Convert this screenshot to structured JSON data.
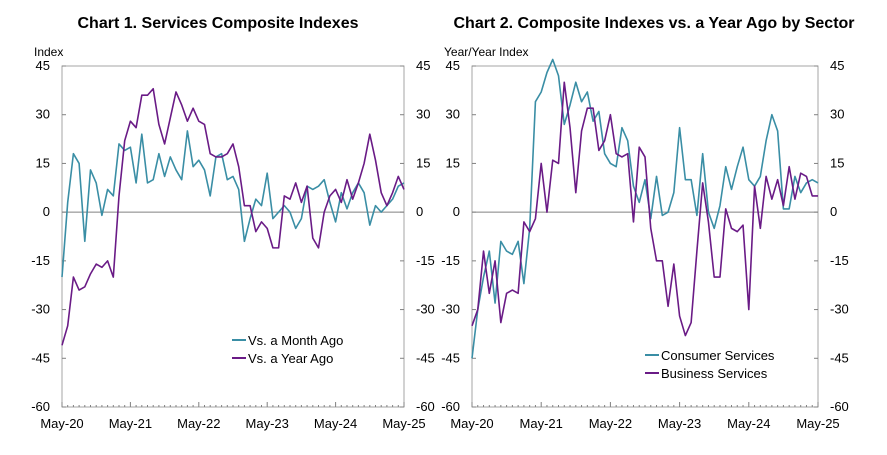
{
  "colors": {
    "teal": "#3a8ea5",
    "purple": "#6a1b86",
    "axis": "#808080",
    "frame": "#a6a6a6"
  },
  "chart_data": [
    {
      "type": "line",
      "title": "Chart 1. Services Composite Indexes",
      "ylabel": "Index",
      "ylim": [
        -60,
        45
      ],
      "yticks": [
        45,
        30,
        15,
        0,
        -15,
        -30,
        -45,
        -60
      ],
      "xlim": [
        0,
        60
      ],
      "xticks": [
        {
          "i": 0,
          "label": "May-20"
        },
        {
          "i": 12,
          "label": "May-21"
        },
        {
          "i": 24,
          "label": "May-22"
        },
        {
          "i": 36,
          "label": "May-23"
        },
        {
          "i": 48,
          "label": "May-24"
        },
        {
          "i": 60,
          "label": "May-25"
        }
      ],
      "grid": false,
      "legend": "bottom-right",
      "series": [
        {
          "name": "Vs. a Month Ago",
          "color": "#3a8ea5",
          "values": [
            -20,
            3,
            18,
            15,
            -9,
            13,
            9,
            -1,
            7,
            5,
            21,
            19,
            20,
            9,
            24,
            9,
            10,
            18,
            11,
            17,
            13,
            10,
            25,
            14,
            16,
            13,
            5,
            17,
            18,
            10,
            11,
            7,
            -9,
            -2,
            4,
            2,
            12,
            -2,
            0,
            2,
            0,
            -5,
            -2,
            8,
            7,
            8,
            10,
            3,
            -3,
            6,
            1,
            6,
            9,
            6,
            -4,
            2,
            0,
            2,
            4,
            8,
            9
          ]
        },
        {
          "name": "Vs. a Year Ago",
          "color": "#6a1b86",
          "values": [
            -41,
            -35,
            -20,
            -24,
            -23,
            -19,
            -16,
            -17,
            -15,
            -20,
            5,
            22,
            28,
            26,
            36,
            36,
            38,
            27,
            21,
            29,
            37,
            33,
            28,
            32,
            28,
            27,
            18,
            17,
            17,
            18,
            21,
            14,
            2,
            2,
            -6,
            -3,
            -5,
            -11,
            -11,
            5,
            4,
            9,
            3,
            8,
            -8,
            -11,
            0,
            5,
            7,
            3,
            10,
            4,
            9,
            15,
            24,
            16,
            6,
            2,
            6,
            11,
            7
          ]
        }
      ]
    },
    {
      "type": "line",
      "title": "Chart 2. Composite Indexes vs. a Year Ago by Sector",
      "ylabel": "Year/Year Index",
      "ylim": [
        -60,
        45
      ],
      "yticks": [
        45,
        30,
        15,
        0,
        -15,
        -30,
        -45,
        -60
      ],
      "xlim": [
        0,
        60
      ],
      "xticks": [
        {
          "i": 0,
          "label": "May-20"
        },
        {
          "i": 12,
          "label": "May-21"
        },
        {
          "i": 24,
          "label": "May-22"
        },
        {
          "i": 36,
          "label": "May-23"
        },
        {
          "i": 48,
          "label": "May-24"
        },
        {
          "i": 60,
          "label": "May-25"
        }
      ],
      "grid": false,
      "legend": "bottom-right",
      "series": [
        {
          "name": "Consumer Services",
          "color": "#3a8ea5",
          "values": [
            -45,
            -30,
            -20,
            -12,
            -28,
            -9,
            -12,
            -13,
            -9,
            -22,
            -5,
            34,
            37,
            43,
            47,
            42,
            27,
            33,
            40,
            34,
            37,
            28,
            31,
            18,
            15,
            14,
            26,
            22,
            8,
            3,
            10,
            -2,
            11,
            -1,
            0,
            6,
            26,
            10,
            10,
            -1,
            18,
            0,
            -5,
            2,
            14,
            7,
            14,
            20,
            10,
            8,
            11,
            22,
            30,
            25,
            1,
            1,
            11,
            6,
            9,
            10,
            9
          ]
        },
        {
          "name": "Business Services",
          "color": "#6a1b86",
          "values": [
            -35,
            -30,
            -12,
            -25,
            -15,
            -34,
            -25,
            -24,
            -25,
            -3,
            -6,
            -2,
            15,
            0,
            16,
            15,
            40,
            26,
            6,
            25,
            32,
            32,
            19,
            22,
            30,
            18,
            17,
            18,
            -3,
            20,
            17,
            -5,
            -15,
            -15,
            -29,
            -16,
            -32,
            -38,
            -34,
            -12,
            9,
            -3,
            -20,
            -20,
            1,
            -5,
            -6,
            -4,
            -30,
            8,
            -5,
            11,
            4,
            10,
            2,
            14,
            4,
            12,
            11,
            5,
            5
          ]
        }
      ]
    }
  ]
}
